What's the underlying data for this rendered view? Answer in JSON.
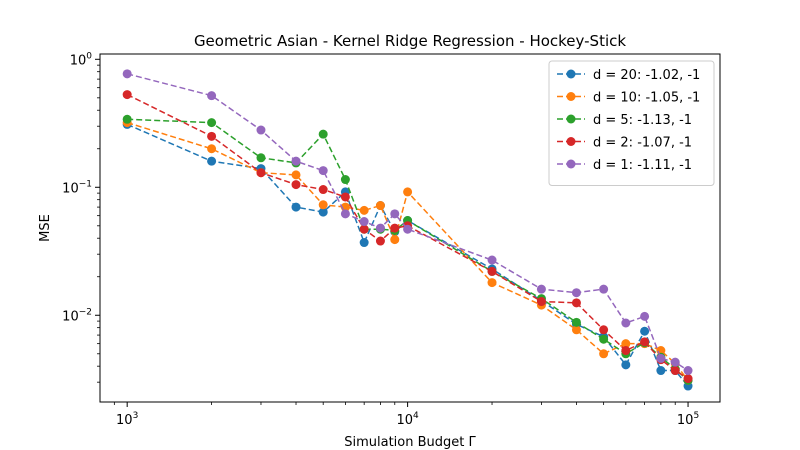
{
  "chart_data": {
    "type": "line",
    "title": "Geometric Asian - Kernel Ridge Regression - Hockey-Stick",
    "xlabel": "Simulation Budget Γ",
    "ylabel": "MSE",
    "xscale": "log",
    "yscale": "log",
    "xlim": [
      800,
      130000
    ],
    "ylim": [
      0.0021,
      1.1
    ],
    "x_ticks": [
      {
        "value": 1000,
        "base": "10",
        "exp": "3"
      },
      {
        "value": 10000,
        "base": "10",
        "exp": "4"
      },
      {
        "value": 100000,
        "base": "10",
        "exp": "5"
      }
    ],
    "y_ticks": [
      {
        "value": 1,
        "base": "10",
        "exp": "0"
      },
      {
        "value": 0.1,
        "base": "10",
        "exp": "−1"
      },
      {
        "value": 0.01,
        "base": "10",
        "exp": "−2"
      }
    ],
    "grid": false,
    "legend_position": "top-right",
    "x": [
      1000,
      2000,
      3000,
      4000,
      5000,
      6000,
      7000,
      8000,
      9000,
      10000,
      20000,
      30000,
      40000,
      50000,
      60000,
      70000,
      80000,
      90000,
      100000
    ],
    "series": [
      {
        "name": "d = 20: -1.02, -1",
        "color": "#1f77b4",
        "values": [
          0.31,
          0.16,
          0.14,
          0.07,
          0.064,
          0.092,
          0.037,
          0.072,
          0.045,
          0.055,
          0.023,
          0.013,
          0.0085,
          0.0068,
          0.0041,
          0.0075,
          0.0037,
          0.0037,
          0.0028
        ]
      },
      {
        "name": "d = 10: -1.05, -1",
        "color": "#ff7f0e",
        "values": [
          0.32,
          0.2,
          0.13,
          0.125,
          0.073,
          0.07,
          0.066,
          0.072,
          0.039,
          0.092,
          0.018,
          0.012,
          0.0077,
          0.005,
          0.006,
          0.006,
          0.0053,
          0.0042,
          0.0031
        ]
      },
      {
        "name": "d = 5: -1.13, -1",
        "color": "#2ca02c",
        "values": [
          0.34,
          0.32,
          0.17,
          0.155,
          0.26,
          0.115,
          0.047,
          0.047,
          0.046,
          0.055,
          0.022,
          0.0135,
          0.0088,
          0.0065,
          0.005,
          0.0061,
          0.0047,
          0.0038,
          0.0031
        ]
      },
      {
        "name": "d = 2: -1.07, -1",
        "color": "#d62728",
        "values": [
          0.53,
          0.25,
          0.13,
          0.105,
          0.096,
          0.084,
          0.047,
          0.038,
          0.048,
          0.05,
          0.022,
          0.0128,
          0.0125,
          0.0077,
          0.0053,
          0.0062,
          0.0045,
          0.0037,
          0.0032
        ]
      },
      {
        "name": "d = 1: -1.11, -1",
        "color": "#9467bd",
        "values": [
          0.77,
          0.52,
          0.28,
          0.16,
          0.135,
          0.062,
          0.054,
          0.048,
          0.062,
          0.047,
          0.027,
          0.016,
          0.015,
          0.016,
          0.0087,
          0.0098,
          0.0046,
          0.0043,
          0.0037
        ]
      }
    ]
  }
}
